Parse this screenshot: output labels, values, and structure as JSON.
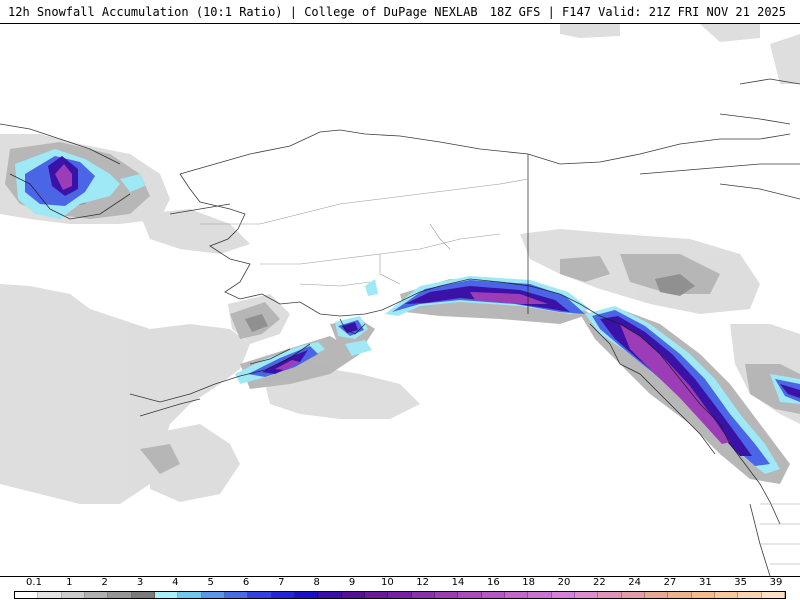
{
  "header": {
    "title": "12h Snowfall Accumulation (10:1 Ratio) | College of DuPage NEXLAB",
    "run_info": "18Z GFS | F147 Valid: 21Z FRI NOV 21 2025"
  },
  "legend": {
    "labels": [
      "0.1",
      "1",
      "2",
      "3",
      "4",
      "5",
      "6",
      "7",
      "8",
      "9",
      "10",
      "12",
      "14",
      "16",
      "18",
      "20",
      "22",
      "24",
      "27",
      "31",
      "35",
      "39"
    ],
    "colors": [
      "#ffffff",
      "#e4e4e4",
      "#cccccc",
      "#b0b0b0",
      "#969696",
      "#7a7a7a",
      "#a8f0f8",
      "#6ec8f0",
      "#5a96ec",
      "#4a6ae6",
      "#3540e0",
      "#2424d8",
      "#1a10c8",
      "#3a10a8",
      "#541098",
      "#661a9e",
      "#7a20a8",
      "#8c30b0",
      "#9c3cb6",
      "#ae4ac0",
      "#b856c6",
      "#c466cc",
      "#cc72d2",
      "#d880d6",
      "#de8ccc",
      "#e094b8",
      "#e49ca6",
      "#e8a896",
      "#eeb28e",
      "#f2bc92",
      "#f6c8a0",
      "#f8d4b2",
      "#fbe0c6"
    ],
    "label_positions": [
      0,
      2,
      4,
      6,
      8,
      10,
      12,
      14,
      16,
      18,
      20,
      22,
      24,
      26,
      28,
      30,
      32,
      34,
      36,
      38,
      40,
      42
    ]
  }
}
